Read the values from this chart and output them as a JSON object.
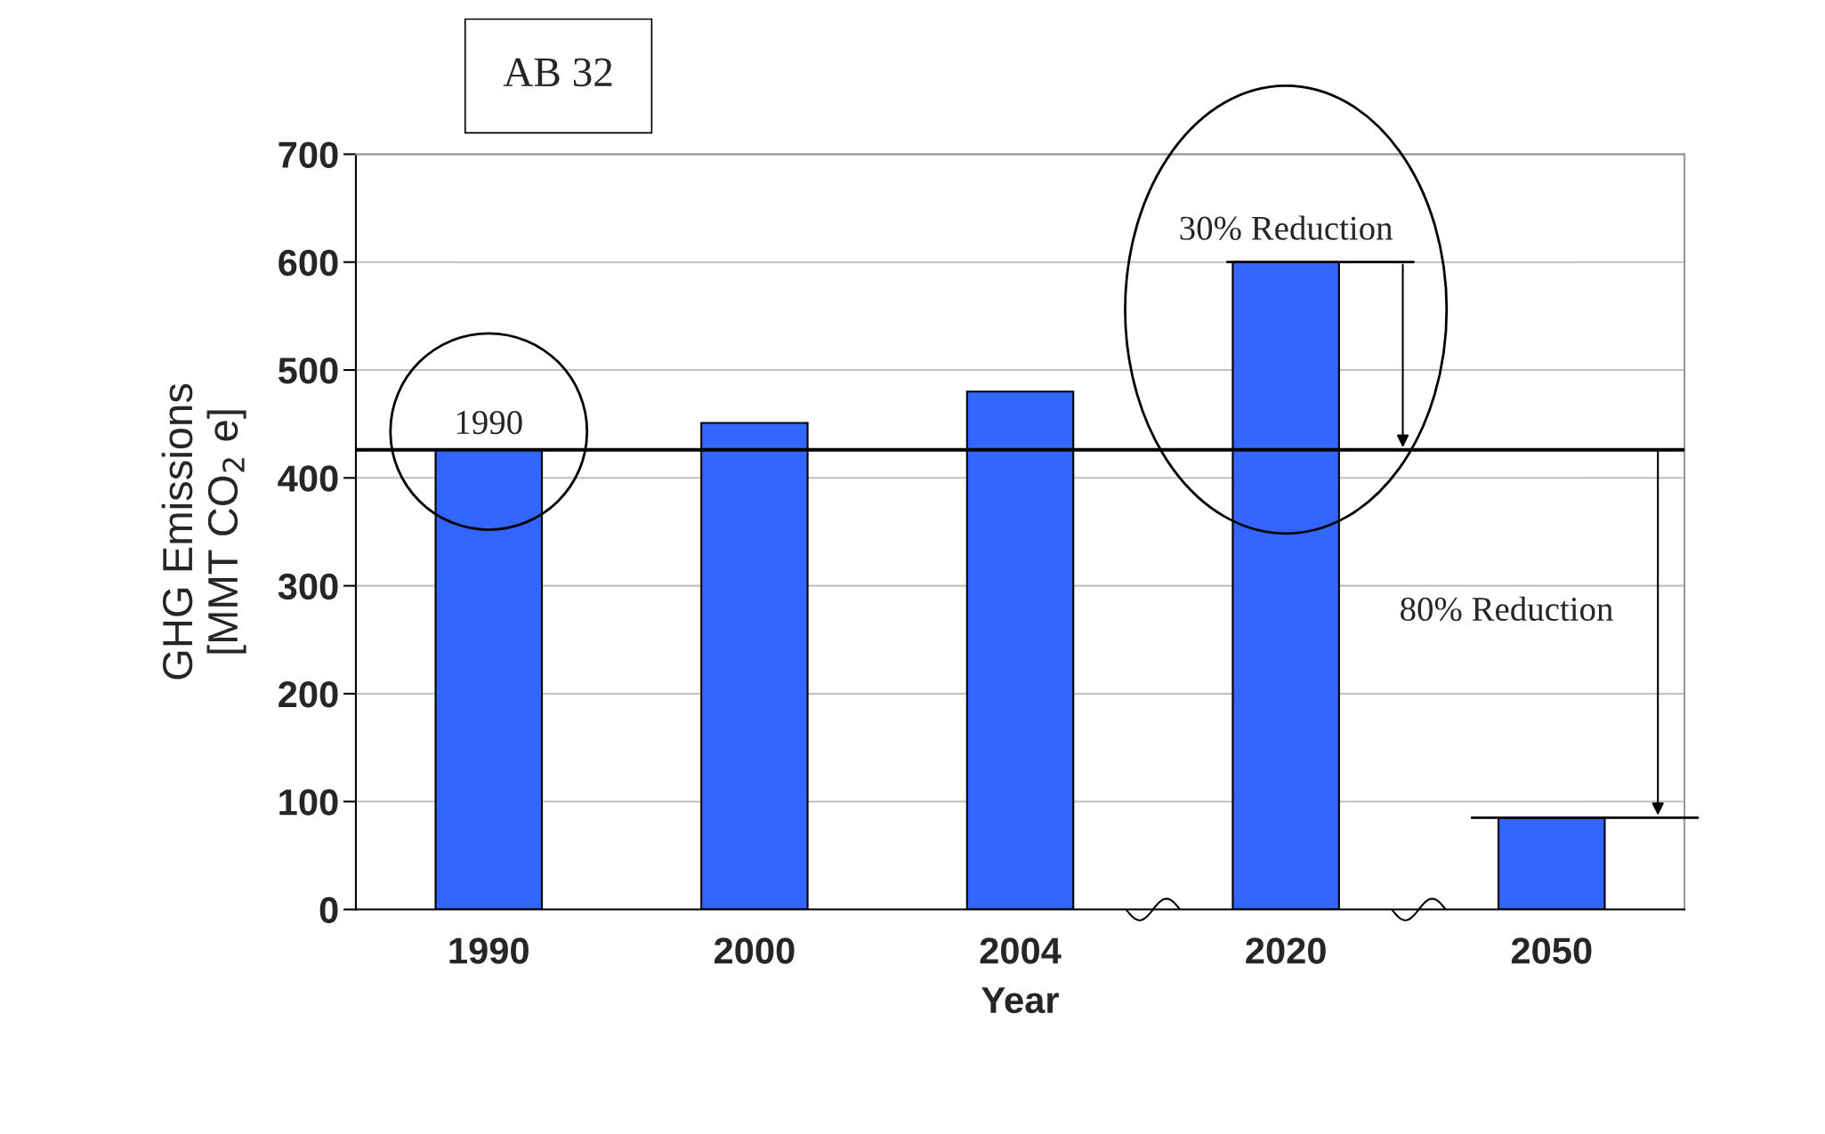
{
  "chart_data": {
    "type": "bar",
    "title": "AB 32",
    "categories": [
      "1990",
      "2000",
      "2004",
      "2020",
      "2050"
    ],
    "values": [
      426,
      451,
      480,
      600,
      85
    ],
    "color": "#3366ff",
    "xlabel": "Year",
    "ylabel": "GHG Emissions\n[MMT CO$_{2}$ e]",
    "ylim": [
      0,
      700
    ],
    "yticks": [
      0,
      100,
      200,
      300,
      400,
      500,
      600,
      700
    ],
    "grid": "y",
    "ref_lines": [
      {
        "axis": "y",
        "value": 426,
        "color": "#000000",
        "line_style": "solid"
      }
    ],
    "annotations": [
      {
        "text": "1990",
        "x": "1990",
        "y": 426
      },
      {
        "text": "30% Reduction",
        "x": "2020",
        "y": 600
      },
      "80% Reduction"
    ]
  }
}
